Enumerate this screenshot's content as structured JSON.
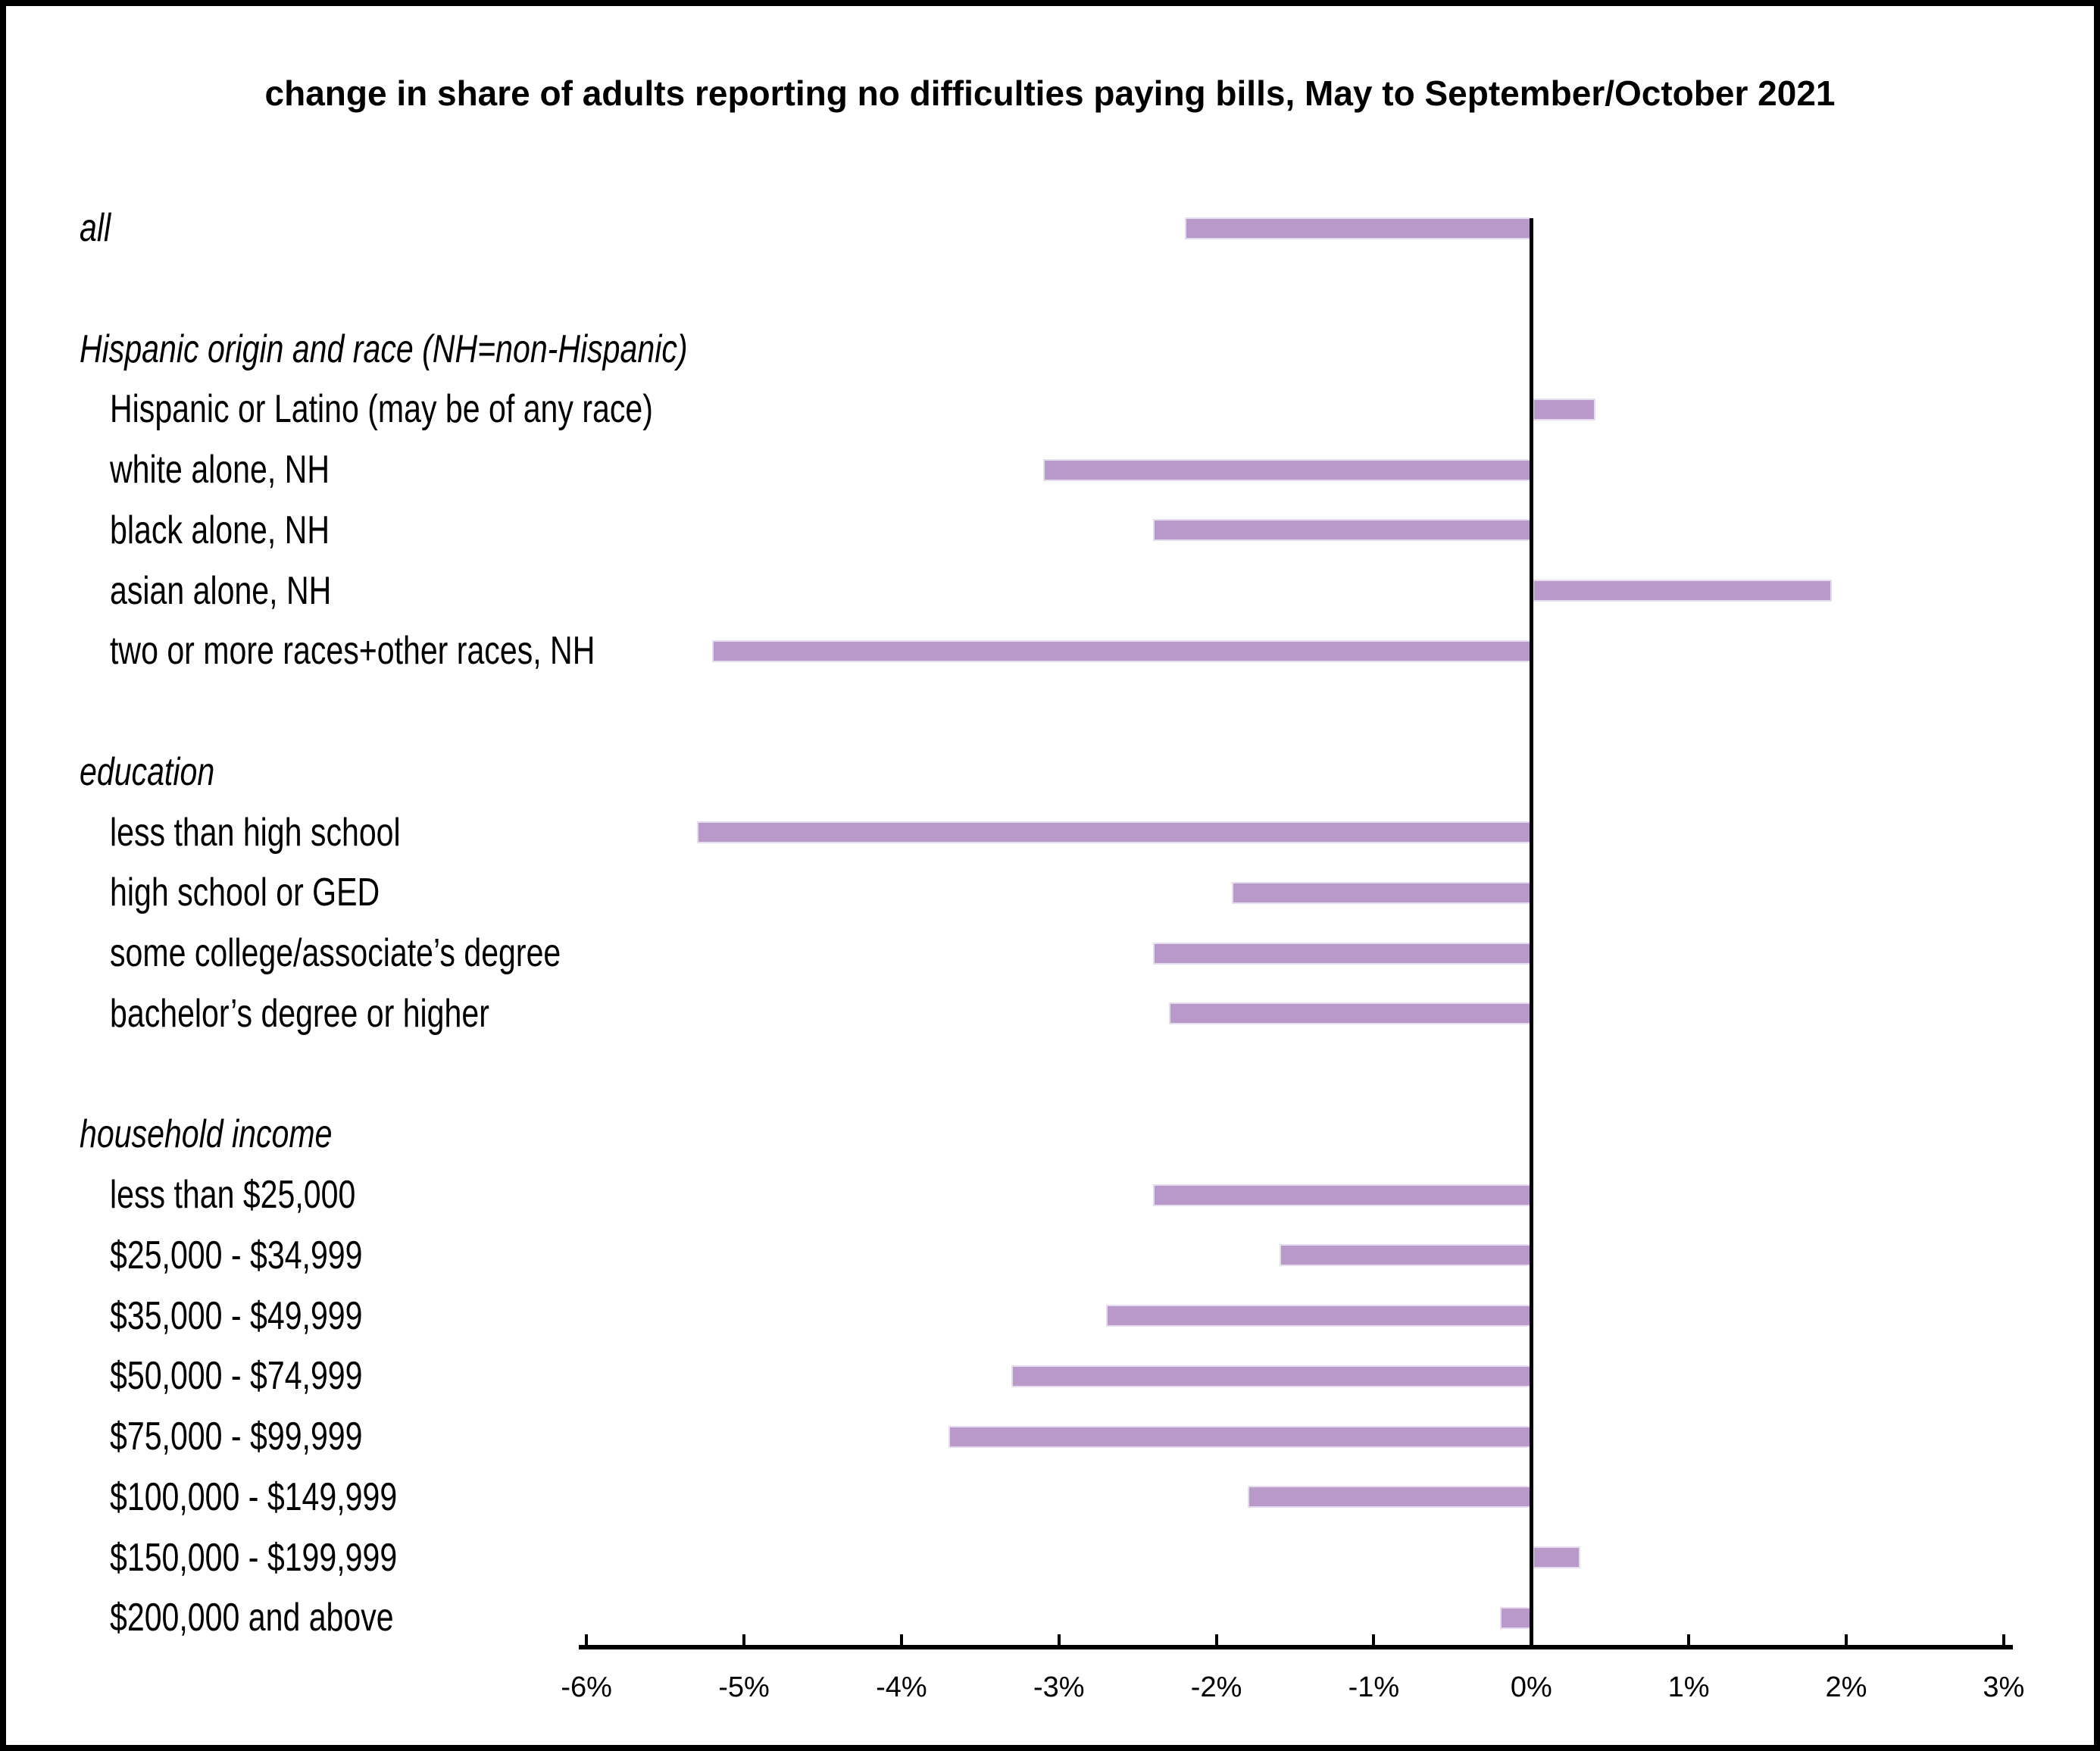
{
  "title": "change in share of adults reporting no difficulties paying bills, May to September/October 2021",
  "chart_data": {
    "type": "bar",
    "orientation": "horizontal",
    "title": "change in share of adults reporting no difficulties paying bills, May to September/October 2021",
    "unit": "percentage points",
    "x_axis": {
      "min": -6,
      "max": 3,
      "step": 1,
      "tick_labels": [
        "-6%",
        "-5%",
        "-4%",
        "-3%",
        "-2%",
        "-1%",
        "0%",
        "1%",
        "2%",
        "3%"
      ]
    },
    "legend": "none",
    "grid": "off",
    "colors": {
      "bar_fill": "#b899c9",
      "bar_border": "#e6dcf0",
      "axis": "#000000",
      "text": "#000000",
      "frame_border": "#000000"
    },
    "rows": [
      {
        "label": "all",
        "header": false,
        "italic": true,
        "indent": 0,
        "value": -2.2
      },
      {
        "label": "Hispanic origin and race (NH=non-Hispanic)",
        "header": true,
        "italic": true,
        "indent": 0,
        "spacer_before": true,
        "value": null
      },
      {
        "label": "Hispanic or Latino (may be of any race)",
        "header": false,
        "italic": false,
        "indent": 1,
        "value": 0.4
      },
      {
        "label": "white alone, NH",
        "header": false,
        "italic": false,
        "indent": 1,
        "value": -3.1
      },
      {
        "label": "black alone, NH",
        "header": false,
        "italic": false,
        "indent": 1,
        "value": -2.4
      },
      {
        "label": "asian alone, NH",
        "header": false,
        "italic": false,
        "indent": 1,
        "value": 1.9
      },
      {
        "label": "two or more races+other races, NH",
        "header": false,
        "italic": false,
        "indent": 1,
        "value": -5.2
      },
      {
        "label": "education",
        "header": true,
        "italic": true,
        "indent": 0,
        "spacer_before": true,
        "value": null
      },
      {
        "label": "less than high school",
        "header": false,
        "italic": false,
        "indent": 1,
        "value": -5.3
      },
      {
        "label": "high school or GED",
        "header": false,
        "italic": false,
        "indent": 1,
        "value": -1.9
      },
      {
        "label": "some college/associate’s degree",
        "header": false,
        "italic": false,
        "indent": 1,
        "value": -2.4
      },
      {
        "label": "bachelor’s degree or higher",
        "header": false,
        "italic": false,
        "indent": 1,
        "value": -2.3
      },
      {
        "label": "household income",
        "header": true,
        "italic": true,
        "indent": 0,
        "spacer_before": true,
        "value": null
      },
      {
        "label": "less than $25,000",
        "header": false,
        "italic": false,
        "indent": 1,
        "value": -2.4
      },
      {
        "label": "$25,000 - $34,999",
        "header": false,
        "italic": false,
        "indent": 1,
        "value": -1.6
      },
      {
        "label": "$35,000 - $49,999",
        "header": false,
        "italic": false,
        "indent": 1,
        "value": -2.7
      },
      {
        "label": "$50,000 - $74,999",
        "header": false,
        "italic": false,
        "indent": 1,
        "value": -3.3
      },
      {
        "label": "$75,000 - $99,999",
        "header": false,
        "italic": false,
        "indent": 1,
        "value": -3.7
      },
      {
        "label": "$100,000 - $149,999",
        "header": false,
        "italic": false,
        "indent": 1,
        "value": -1.8
      },
      {
        "label": "$150,000 - $199,999",
        "header": false,
        "italic": false,
        "indent": 1,
        "value": 0.3
      },
      {
        "label": "$200,000 and above",
        "header": false,
        "italic": false,
        "indent": 1,
        "value": -0.2
      }
    ]
  }
}
